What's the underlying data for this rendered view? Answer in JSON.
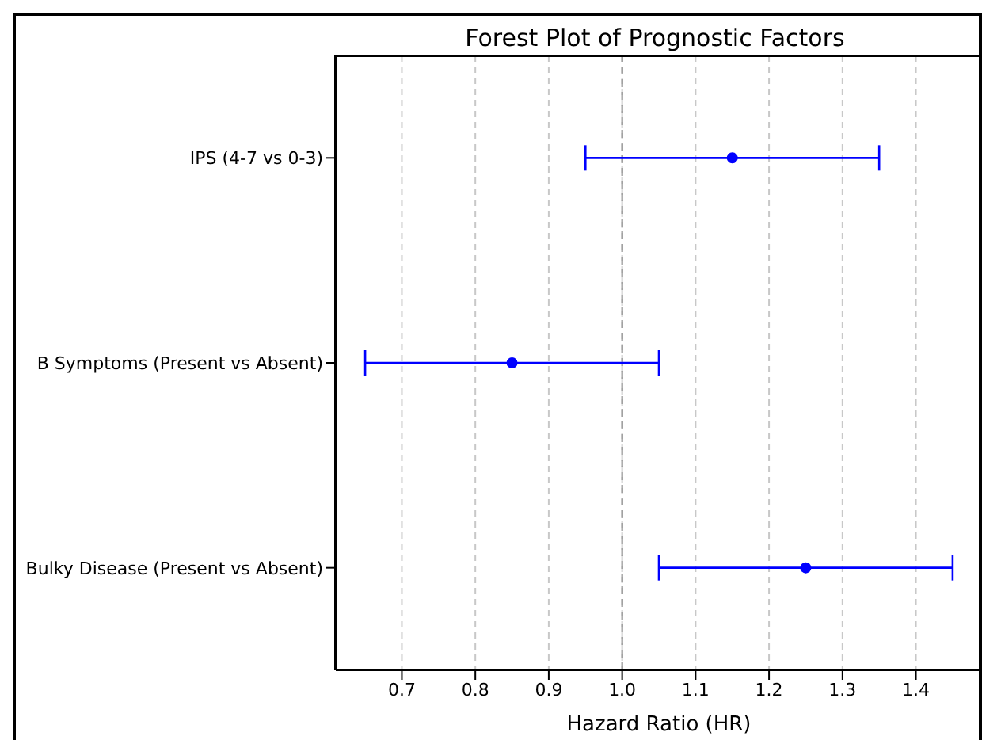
{
  "chart_data": {
    "type": "scatter",
    "orientation": "horizontal",
    "title": "Forest Plot of Prognostic Factors",
    "xlabel": "Hazard Ratio (HR)",
    "categories": [
      "IPS (4-7 vs 0-3)",
      "B Symptoms (Present vs Absent)",
      "Bulky Disease (Present vs Absent)"
    ],
    "values": [
      1.15,
      0.85,
      1.25
    ],
    "errors": [
      0.2,
      0.2,
      0.2
    ],
    "color": "#0000ff",
    "marker": "circle",
    "xlim": [
      0.61,
      1.49
    ],
    "xticks": [
      0.7,
      0.8,
      0.9,
      {
        "value": 1.0,
        "label": "1.0"
      },
      1.1,
      1.2,
      1.3,
      1.4
    ],
    "grid": "x",
    "ref_lines": [
      {
        "axis": "x",
        "value": 1.0,
        "color": "#808080",
        "line_style": "dashed"
      }
    ]
  }
}
